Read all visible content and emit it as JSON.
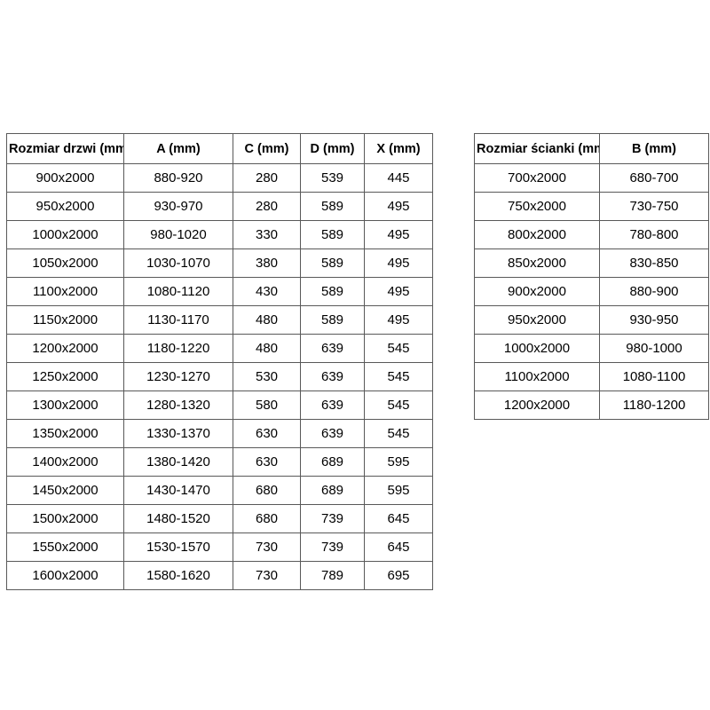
{
  "colors": {
    "background": "#ffffff",
    "table_border": "#595959",
    "text": "#000000"
  },
  "chart_data": [
    {
      "type": "table",
      "name": "door-sizes",
      "columns": [
        "Rozmiar drzwi (mm)",
        "A (mm)",
        "C (mm)",
        "D (mm)",
        "X (mm)"
      ],
      "rows": [
        [
          "900x2000",
          "880-920",
          "280",
          "539",
          "445"
        ],
        [
          "950x2000",
          "930-970",
          "280",
          "589",
          "495"
        ],
        [
          "1000x2000",
          "980-1020",
          "330",
          "589",
          "495"
        ],
        [
          "1050x2000",
          "1030-1070",
          "380",
          "589",
          "495"
        ],
        [
          "1100x2000",
          "1080-1120",
          "430",
          "589",
          "495"
        ],
        [
          "1150x2000",
          "1130-1170",
          "480",
          "589",
          "495"
        ],
        [
          "1200x2000",
          "1180-1220",
          "480",
          "639",
          "545"
        ],
        [
          "1250x2000",
          "1230-1270",
          "530",
          "639",
          "545"
        ],
        [
          "1300x2000",
          "1280-1320",
          "580",
          "639",
          "545"
        ],
        [
          "1350x2000",
          "1330-1370",
          "630",
          "639",
          "545"
        ],
        [
          "1400x2000",
          "1380-1420",
          "630",
          "689",
          "595"
        ],
        [
          "1450x2000",
          "1430-1470",
          "680",
          "689",
          "595"
        ],
        [
          "1500x2000",
          "1480-1520",
          "680",
          "739",
          "645"
        ],
        [
          "1550x2000",
          "1530-1570",
          "730",
          "739",
          "645"
        ],
        [
          "1600x2000",
          "1580-1620",
          "730",
          "789",
          "695"
        ]
      ]
    },
    {
      "type": "table",
      "name": "wall-panel-sizes",
      "columns": [
        "Rozmiar ścianki (mm)",
        "B (mm)"
      ],
      "rows": [
        [
          "700x2000",
          "680-700"
        ],
        [
          "750x2000",
          "730-750"
        ],
        [
          "800x2000",
          "780-800"
        ],
        [
          "850x2000",
          "830-850"
        ],
        [
          "900x2000",
          "880-900"
        ],
        [
          "950x2000",
          "930-950"
        ],
        [
          "1000x2000",
          "980-1000"
        ],
        [
          "1100x2000",
          "1080-1100"
        ],
        [
          "1200x2000",
          "1180-1200"
        ]
      ]
    }
  ]
}
